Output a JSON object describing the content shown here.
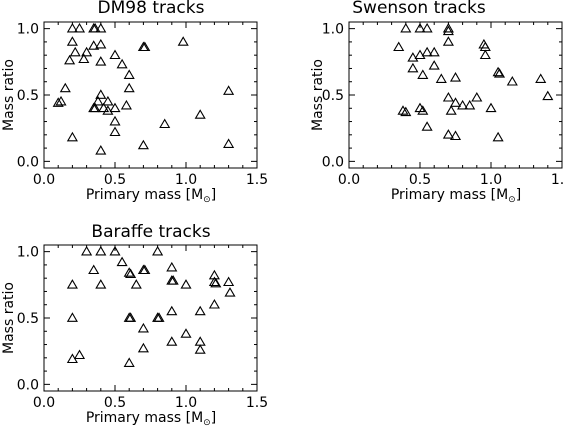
{
  "chart_data": [
    {
      "type": "scatter",
      "title": "DM98 tracks",
      "xlabel": "Primary mass [M",
      "xlabel_symbol": "⊙",
      "xlabel_close": "]",
      "ylabel": "Mass ratio",
      "xlim": [
        0.0,
        1.5
      ],
      "ylim": [
        -0.05,
        1.05
      ],
      "xticks": [
        "0.0",
        "0.5",
        "1.0",
        "1.5"
      ],
      "yticks": [
        "0.0",
        "0.5",
        "1.0"
      ],
      "xtick_values": [
        0.0,
        0.5,
        1.0,
        1.5
      ],
      "ytick_values": [
        0.0,
        0.5,
        1.0
      ],
      "marker": "open-triangle",
      "points": [
        [
          0.2,
          1.0
        ],
        [
          0.25,
          1.0
        ],
        [
          0.35,
          1.0
        ],
        [
          0.36,
          1.0
        ],
        [
          0.4,
          1.0
        ],
        [
          0.2,
          0.9
        ],
        [
          0.35,
          0.87
        ],
        [
          0.4,
          0.88
        ],
        [
          0.22,
          0.82
        ],
        [
          0.3,
          0.82
        ],
        [
          0.18,
          0.76
        ],
        [
          0.28,
          0.77
        ],
        [
          0.4,
          0.75
        ],
        [
          0.5,
          0.8
        ],
        [
          0.55,
          0.73
        ],
        [
          0.6,
          0.65
        ],
        [
          0.7,
          0.86
        ],
        [
          0.71,
          0.86
        ],
        [
          0.98,
          0.9
        ],
        [
          0.15,
          0.55
        ],
        [
          0.1,
          0.44
        ],
        [
          0.12,
          0.45
        ],
        [
          0.4,
          0.5
        ],
        [
          0.38,
          0.45
        ],
        [
          0.45,
          0.45
        ],
        [
          0.6,
          0.55
        ],
        [
          0.35,
          0.4
        ],
        [
          0.36,
          0.4
        ],
        [
          0.42,
          0.4
        ],
        [
          0.45,
          0.38
        ],
        [
          0.5,
          0.4
        ],
        [
          0.58,
          0.42
        ],
        [
          1.3,
          0.53
        ],
        [
          0.5,
          0.3
        ],
        [
          0.5,
          0.22
        ],
        [
          0.2,
          0.18
        ],
        [
          1.1,
          0.35
        ],
        [
          0.85,
          0.28
        ],
        [
          0.7,
          0.12
        ],
        [
          0.4,
          0.08
        ],
        [
          1.3,
          0.13
        ]
      ]
    },
    {
      "type": "scatter",
      "title": "Swenson tracks",
      "xlabel": "Primary mass [M",
      "xlabel_symbol": "⊙",
      "xlabel_close": "]",
      "ylabel": "Mass ratio",
      "xlim": [
        0.0,
        1.5
      ],
      "ylim": [
        -0.05,
        1.05
      ],
      "xticks": [
        "0.0",
        "0.5",
        "1.0",
        "1.5"
      ],
      "yticks": [
        "0.0",
        "0.5",
        "1.0"
      ],
      "xtick_values": [
        0.0,
        0.5,
        1.0,
        1.5
      ],
      "ytick_values": [
        0.0,
        0.5,
        1.0
      ],
      "marker": "open-triangle",
      "points": [
        [
          0.4,
          1.0
        ],
        [
          0.5,
          1.0
        ],
        [
          0.55,
          1.0
        ],
        [
          0.7,
          1.0
        ],
        [
          0.7,
          0.98
        ],
        [
          0.35,
          0.86
        ],
        [
          0.45,
          0.78
        ],
        [
          0.5,
          0.8
        ],
        [
          0.55,
          0.82
        ],
        [
          0.6,
          0.82
        ],
        [
          0.45,
          0.7
        ],
        [
          0.52,
          0.65
        ],
        [
          0.6,
          0.72
        ],
        [
          0.65,
          0.62
        ],
        [
          0.7,
          0.9
        ],
        [
          0.75,
          0.63
        ],
        [
          0.95,
          0.88
        ],
        [
          0.96,
          0.86
        ],
        [
          0.96,
          0.8
        ],
        [
          1.05,
          0.67
        ],
        [
          1.06,
          0.66
        ],
        [
          1.15,
          0.6
        ],
        [
          1.35,
          0.62
        ],
        [
          1.4,
          0.49
        ],
        [
          0.7,
          0.48
        ],
        [
          0.75,
          0.44
        ],
        [
          0.8,
          0.42
        ],
        [
          0.85,
          0.42
        ],
        [
          0.72,
          0.38
        ],
        [
          0.9,
          0.48
        ],
        [
          0.38,
          0.38
        ],
        [
          0.4,
          0.37
        ],
        [
          0.5,
          0.4
        ],
        [
          0.52,
          0.38
        ],
        [
          0.55,
          0.26
        ],
        [
          0.7,
          0.2
        ],
        [
          0.75,
          0.19
        ],
        [
          1.0,
          0.4
        ],
        [
          1.05,
          0.18
        ]
      ]
    },
    {
      "type": "scatter",
      "title": "Baraffe tracks",
      "xlabel": "Primary mass [M",
      "xlabel_symbol": "⊙",
      "xlabel_close": "]",
      "ylabel": "Mass ratio",
      "xlim": [
        0.0,
        1.5
      ],
      "ylim": [
        -0.05,
        1.05
      ],
      "xticks": [
        "0.0",
        "0.5",
        "1.0",
        "1.5"
      ],
      "yticks": [
        "0.0",
        "0.5",
        "1.0"
      ],
      "xtick_values": [
        0.0,
        0.5,
        1.0,
        1.5
      ],
      "ytick_values": [
        0.0,
        0.5,
        1.0
      ],
      "marker": "open-triangle",
      "points": [
        [
          0.3,
          1.0
        ],
        [
          0.4,
          1.0
        ],
        [
          0.5,
          1.0
        ],
        [
          0.8,
          1.0
        ],
        [
          0.55,
          0.92
        ],
        [
          0.35,
          0.86
        ],
        [
          0.6,
          0.84
        ],
        [
          0.61,
          0.83
        ],
        [
          0.7,
          0.86
        ],
        [
          0.71,
          0.86
        ],
        [
          0.9,
          0.88
        ],
        [
          0.2,
          0.75
        ],
        [
          0.4,
          0.75
        ],
        [
          0.65,
          0.75
        ],
        [
          0.9,
          0.78
        ],
        [
          0.91,
          0.78
        ],
        [
          1.0,
          0.75
        ],
        [
          1.2,
          0.82
        ],
        [
          1.2,
          0.77
        ],
        [
          1.21,
          0.76
        ],
        [
          1.3,
          0.77
        ],
        [
          1.31,
          0.69
        ],
        [
          0.6,
          0.5
        ],
        [
          0.61,
          0.5
        ],
        [
          0.8,
          0.5
        ],
        [
          0.81,
          0.5
        ],
        [
          0.7,
          0.42
        ],
        [
          0.9,
          0.55
        ],
        [
          1.1,
          0.55
        ],
        [
          1.2,
          0.6
        ],
        [
          0.2,
          0.5
        ],
        [
          1.0,
          0.38
        ],
        [
          0.9,
          0.32
        ],
        [
          1.1,
          0.32
        ],
        [
          1.1,
          0.26
        ],
        [
          0.7,
          0.27
        ],
        [
          0.2,
          0.19
        ],
        [
          0.25,
          0.22
        ],
        [
          0.6,
          0.16
        ]
      ]
    }
  ]
}
